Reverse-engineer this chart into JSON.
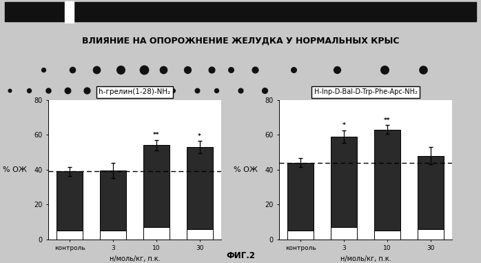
{
  "title": "ВЛИЯНИЕ НА ОПОРОЖНЕНИЕ ЖЕЛУДКА У НОРМАЛЬНЫХ КРЫС",
  "figure_label": "ФИГ.2",
  "left_chart": {
    "title": "h-грелин(1-28)-NH₂",
    "categories": [
      "контроль",
      "3",
      "10",
      "30"
    ],
    "values": [
      39,
      39.5,
      54,
      53
    ],
    "errors": [
      2.5,
      4.5,
      3.0,
      3.5
    ],
    "white_base": [
      5,
      5,
      7,
      6
    ],
    "dashed_line": 39,
    "ylabel": "% ОЖ",
    "xlabel": "н/моль/кг, п.к.",
    "ylim": [
      0,
      80
    ],
    "yticks": [
      0,
      20,
      40,
      60,
      80
    ],
    "significance": [
      "",
      "",
      "**",
      "*"
    ]
  },
  "right_chart": {
    "title": "H-Inp-D-Bal-D-Trp-Phe-Apc-NH₂",
    "categories": [
      "контроль",
      "3",
      "10",
      "30"
    ],
    "values": [
      44,
      59,
      63,
      48
    ],
    "errors": [
      2.5,
      3.5,
      2.5,
      5.0
    ],
    "white_base": [
      5,
      7,
      5,
      6
    ],
    "dashed_line": 44,
    "ylabel": "% ОЖ",
    "xlabel": "н/моль/кг, п.к.",
    "ylim": [
      0,
      80
    ],
    "yticks": [
      0,
      20,
      40,
      60,
      80
    ],
    "significance": [
      "",
      "*",
      "**",
      ""
    ]
  },
  "dots_row1": {
    "x": [
      0.09,
      0.15,
      0.2,
      0.25,
      0.3,
      0.34,
      0.39,
      0.44,
      0.48,
      0.53,
      0.61,
      0.7,
      0.8,
      0.88
    ],
    "s": [
      18,
      35,
      55,
      70,
      80,
      55,
      50,
      40,
      30,
      40,
      30,
      50,
      70,
      65
    ]
  },
  "dots_row2": {
    "x": [
      0.02,
      0.06,
      0.1,
      0.14,
      0.18,
      0.22,
      0.27,
      0.31,
      0.36,
      0.41,
      0.45,
      0.5,
      0.55
    ],
    "s": [
      15,
      25,
      35,
      50,
      55,
      40,
      35,
      28,
      22,
      30,
      25,
      32,
      42
    ]
  },
  "bar_dark_color": "#2a2a2a",
  "bar_white_color": "#ffffff",
  "fig_bg": "#c8c8c8"
}
